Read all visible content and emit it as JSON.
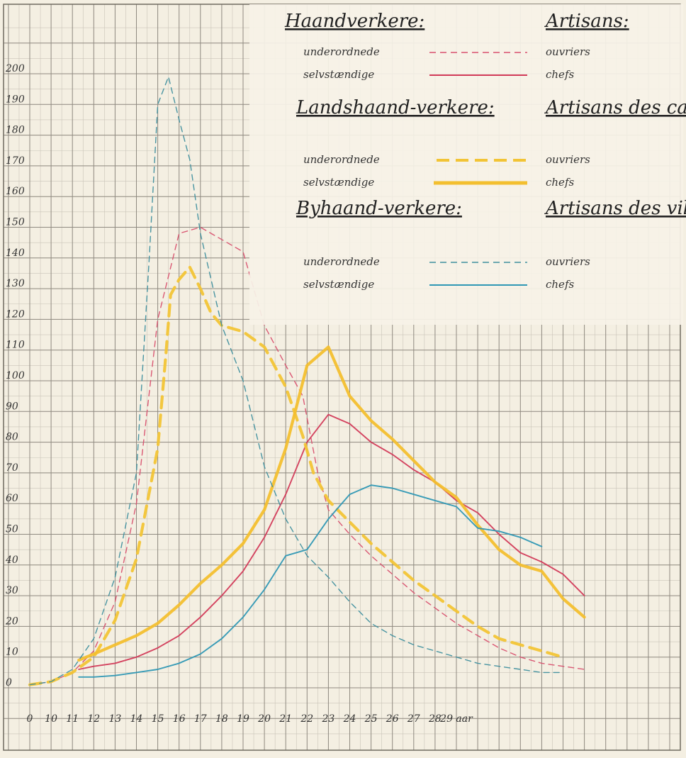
{
  "chart_data": {
    "type": "line",
    "xlabel": "",
    "ylabel": "",
    "x_ticks": [
      "0",
      "10",
      "11",
      "12",
      "13",
      "14",
      "15",
      "16",
      "17",
      "18",
      "19",
      "20",
      "21",
      "22",
      "23",
      "24",
      "25",
      "26",
      "27",
      "28",
      "29 aar"
    ],
    "y_ticks": [
      "0",
      "10",
      "20",
      "30",
      "40",
      "50",
      "60",
      "70",
      "80",
      "90",
      "100",
      "110",
      "120",
      "130",
      "140",
      "150",
      "160",
      "170",
      "180",
      "190",
      "200"
    ],
    "xlim": [
      0,
      30
    ],
    "ylim": [
      0,
      210
    ],
    "grid": true,
    "legend": {
      "placement": "top-right",
      "groups": [
        {
          "heading_left": "Haandverkere:",
          "heading_right": "Artisans:",
          "rows": [
            {
              "left": "underordnede",
              "right": "ouvriers",
              "series": "haandverkere_underordnede"
            },
            {
              "left": "selvstændige",
              "right": "chefs",
              "series": "haandverkere_selvstaendige"
            }
          ]
        },
        {
          "heading_left": "Landshaand-verkere:",
          "heading_right": "Artisans des campagnes:",
          "rows": [
            {
              "left": "underordnede",
              "right": "ouvriers",
              "series": "landshaandverkere_underordnede"
            },
            {
              "left": "selvstændige",
              "right": "chefs",
              "series": "landshaandverkere_selvstaendige"
            }
          ]
        },
        {
          "heading_left": "Byhaand-verkere:",
          "heading_right": "Artisans des villes:",
          "rows": [
            {
              "left": "underordnede",
              "right": "ouvriers",
              "series": "byhaandverkere_underordnede"
            },
            {
              "left": "selvstændige",
              "right": "chefs",
              "series": "byhaandverkere_selvstaendige"
            }
          ]
        }
      ]
    },
    "series": [
      {
        "id": "haandverkere_underordnede",
        "color": "#d8506e",
        "style": "dashed",
        "points": [
          [
            0,
            1
          ],
          [
            1,
            2
          ],
          [
            2,
            5
          ],
          [
            3,
            12
          ],
          [
            4,
            28
          ],
          [
            5,
            60
          ],
          [
            6,
            120
          ],
          [
            7,
            148
          ],
          [
            8,
            150
          ],
          [
            9,
            146
          ],
          [
            10,
            142
          ],
          [
            11,
            118
          ],
          [
            12,
            105
          ],
          [
            12.8,
            95
          ],
          [
            13.5,
            70
          ],
          [
            14,
            58
          ],
          [
            15,
            50
          ],
          [
            16,
            43
          ],
          [
            17,
            37
          ],
          [
            18,
            31
          ],
          [
            19,
            26
          ],
          [
            20,
            21
          ],
          [
            21,
            17
          ],
          [
            22,
            13
          ],
          [
            23,
            10
          ],
          [
            24,
            8
          ],
          [
            25,
            7
          ],
          [
            26,
            6
          ]
        ]
      },
      {
        "id": "haandverkere_selvstaendige",
        "color": "#d23a58",
        "style": "solid",
        "points": [
          [
            2.3,
            6
          ],
          [
            3,
            7
          ],
          [
            4,
            8
          ],
          [
            5,
            10
          ],
          [
            6,
            13
          ],
          [
            7,
            17
          ],
          [
            8,
            23
          ],
          [
            9,
            30
          ],
          [
            10,
            38
          ],
          [
            11,
            49
          ],
          [
            12,
            63
          ],
          [
            13,
            80
          ],
          [
            14,
            89
          ],
          [
            15,
            86
          ],
          [
            16,
            80
          ],
          [
            17,
            76
          ],
          [
            18,
            71
          ],
          [
            19,
            67
          ],
          [
            20,
            61
          ],
          [
            21,
            57
          ],
          [
            22,
            50
          ],
          [
            23,
            44
          ],
          [
            24,
            41
          ],
          [
            25,
            37
          ],
          [
            26,
            30
          ]
        ]
      },
      {
        "id": "landshaandverkere_underordnede",
        "color": "#f2c436",
        "style": "dashed",
        "points": [
          [
            0,
            1
          ],
          [
            1,
            2
          ],
          [
            2,
            5
          ],
          [
            3,
            10
          ],
          [
            4,
            22
          ],
          [
            5,
            42
          ],
          [
            6,
            78
          ],
          [
            6.4,
            110
          ],
          [
            6.6,
            128
          ],
          [
            7,
            133
          ],
          [
            7.5,
            137
          ],
          [
            8,
            130
          ],
          [
            8.5,
            122
          ],
          [
            9,
            118
          ],
          [
            10,
            116
          ],
          [
            11,
            111
          ],
          [
            12,
            98
          ],
          [
            12.8,
            82
          ],
          [
            13.3,
            70
          ],
          [
            14,
            61
          ],
          [
            15,
            54
          ],
          [
            16,
            47
          ],
          [
            17,
            41
          ],
          [
            18,
            35
          ],
          [
            19,
            30
          ],
          [
            20,
            25
          ],
          [
            21,
            20
          ],
          [
            22,
            16
          ],
          [
            23,
            14
          ],
          [
            24,
            12
          ],
          [
            25,
            10
          ]
        ]
      },
      {
        "id": "landshaandverkere_selvstaendige",
        "color": "#f3bf2f",
        "style": "solid",
        "points": [
          [
            2.3,
            9
          ],
          [
            3,
            11
          ],
          [
            4,
            14
          ],
          [
            5,
            17
          ],
          [
            6,
            21
          ],
          [
            7,
            27
          ],
          [
            8,
            34
          ],
          [
            9,
            40
          ],
          [
            10,
            47
          ],
          [
            11,
            58
          ],
          [
            12,
            78
          ],
          [
            13,
            105
          ],
          [
            14,
            111
          ],
          [
            15,
            95
          ],
          [
            16,
            87
          ],
          [
            17,
            81
          ],
          [
            18,
            74
          ],
          [
            19,
            67
          ],
          [
            20,
            62
          ],
          [
            21,
            53
          ],
          [
            22,
            45
          ],
          [
            23,
            40
          ],
          [
            24,
            38
          ],
          [
            25,
            29
          ],
          [
            26,
            23
          ]
        ]
      },
      {
        "id": "byhaandverkere_underordnede",
        "color": "#3f8f9e",
        "style": "dashed",
        "points": [
          [
            0,
            1
          ],
          [
            1,
            2
          ],
          [
            2,
            6
          ],
          [
            3,
            16
          ],
          [
            4,
            36
          ],
          [
            5,
            70
          ],
          [
            5.6,
            140
          ],
          [
            6,
            190
          ],
          [
            6.5,
            199
          ],
          [
            7,
            185
          ],
          [
            7.5,
            172
          ],
          [
            8,
            148
          ],
          [
            9,
            118
          ],
          [
            10,
            100
          ],
          [
            10.5,
            86
          ],
          [
            11,
            72
          ],
          [
            12,
            55
          ],
          [
            13,
            43
          ],
          [
            14,
            36
          ],
          [
            15,
            28
          ],
          [
            16,
            21
          ],
          [
            17,
            17
          ],
          [
            18,
            14
          ],
          [
            19,
            12
          ],
          [
            20,
            10
          ],
          [
            21,
            8
          ],
          [
            22,
            7
          ],
          [
            23,
            6
          ],
          [
            24,
            5
          ],
          [
            25,
            5
          ]
        ]
      },
      {
        "id": "byhaandverkere_selvstaendige",
        "color": "#2e97b4",
        "style": "solid",
        "points": [
          [
            2.3,
            3.5
          ],
          [
            3,
            3.5
          ],
          [
            4,
            4
          ],
          [
            5,
            5
          ],
          [
            6,
            6
          ],
          [
            7,
            8
          ],
          [
            8,
            11
          ],
          [
            9,
            16
          ],
          [
            10,
            23
          ],
          [
            11,
            32
          ],
          [
            12,
            43
          ],
          [
            13,
            45
          ],
          [
            14,
            55
          ],
          [
            15,
            63
          ],
          [
            16,
            66
          ],
          [
            17,
            65
          ],
          [
            18,
            63
          ],
          [
            19,
            61
          ],
          [
            20,
            59
          ],
          [
            21,
            52
          ],
          [
            22,
            51
          ],
          [
            23,
            49
          ],
          [
            24,
            46
          ]
        ]
      }
    ]
  }
}
